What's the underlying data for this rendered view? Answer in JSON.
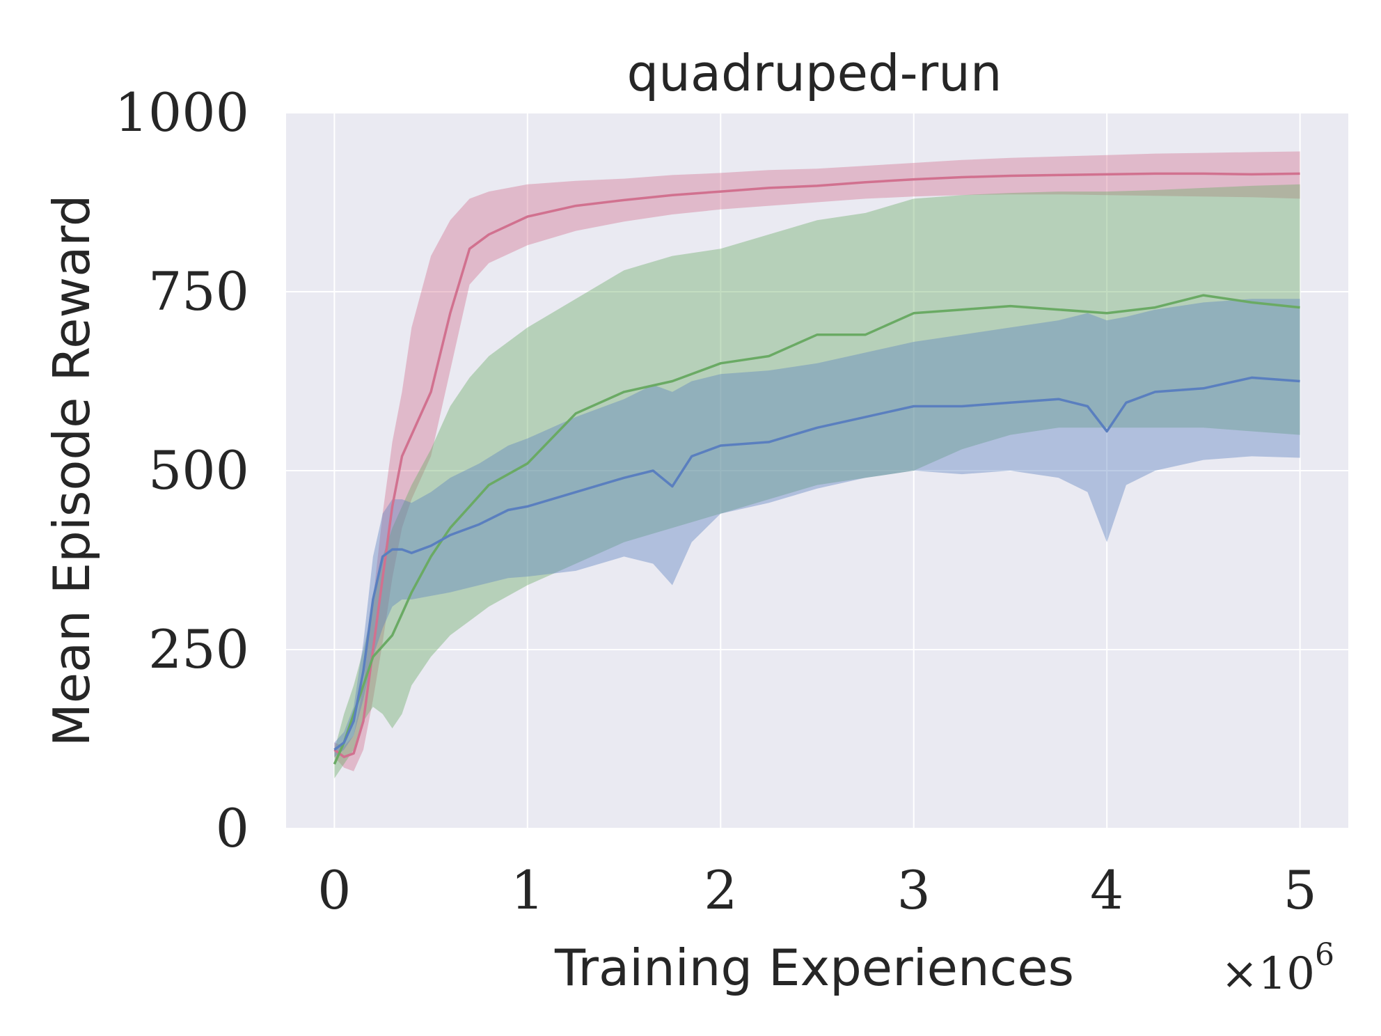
{
  "chart_data": {
    "type": "line",
    "title": "quadruped-run",
    "xlabel": "Training Experiences",
    "ylabel": "Mean Episode Reward",
    "x_offset_text": "×10",
    "x_offset_exponent": "6",
    "xlim": [
      -0.25,
      5.25
    ],
    "ylim": [
      0,
      1000
    ],
    "xticks": [
      0,
      1,
      2,
      3,
      4,
      5
    ],
    "yticks": [
      0,
      250,
      500,
      750,
      1000
    ],
    "x_tick_labels": [
      "0",
      "1",
      "2",
      "3",
      "4",
      "5"
    ],
    "y_tick_labels": [
      "0",
      "250",
      "500",
      "750",
      "1000"
    ],
    "grid": true,
    "legend": "none",
    "colors": {
      "background": "#eaeaf2",
      "grid": "#ffffff",
      "red": "#d1718f",
      "green": "#6aaa64",
      "blue": "#5a7fbf"
    },
    "series": [
      {
        "color_key": "red",
        "x": [
          0.0,
          0.05,
          0.1,
          0.15,
          0.2,
          0.25,
          0.3,
          0.35,
          0.4,
          0.5,
          0.6,
          0.7,
          0.8,
          1.0,
          1.25,
          1.5,
          1.75,
          2.0,
          2.25,
          2.5,
          2.75,
          3.0,
          3.25,
          3.5,
          3.75,
          4.0,
          4.25,
          4.5,
          4.75,
          5.0
        ],
        "y": [
          110,
          100,
          105,
          150,
          250,
          350,
          450,
          520,
          550,
          610,
          720,
          810,
          830,
          855,
          870,
          878,
          885,
          890,
          895,
          898,
          903,
          907,
          910,
          912,
          913,
          914,
          915,
          915,
          914,
          915
        ],
        "lower": [
          100,
          85,
          80,
          110,
          180,
          260,
          350,
          420,
          460,
          520,
          640,
          760,
          790,
          815,
          835,
          848,
          858,
          865,
          870,
          875,
          880,
          883,
          885,
          886,
          886,
          885,
          884,
          883,
          882,
          880
        ],
        "upper": [
          120,
          115,
          130,
          200,
          320,
          440,
          540,
          610,
          700,
          800,
          850,
          880,
          890,
          900,
          905,
          908,
          913,
          916,
          920,
          922,
          926,
          930,
          934,
          937,
          939,
          941,
          943,
          944,
          945,
          946
        ]
      },
      {
        "color_key": "green",
        "x": [
          0.0,
          0.05,
          0.1,
          0.15,
          0.2,
          0.25,
          0.3,
          0.35,
          0.4,
          0.5,
          0.6,
          0.7,
          0.8,
          1.0,
          1.25,
          1.5,
          1.75,
          2.0,
          2.25,
          2.5,
          2.75,
          3.0,
          3.25,
          3.5,
          3.75,
          4.0,
          4.25,
          4.5,
          4.75,
          5.0
        ],
        "y": [
          90,
          120,
          160,
          200,
          240,
          255,
          270,
          300,
          330,
          380,
          420,
          450,
          480,
          510,
          580,
          610,
          625,
          650,
          660,
          690,
          690,
          720,
          725,
          730,
          725,
          720,
          728,
          745,
          735,
          728
        ],
        "lower": [
          70,
          90,
          110,
          150,
          170,
          160,
          140,
          160,
          200,
          240,
          270,
          290,
          310,
          340,
          370,
          400,
          420,
          440,
          460,
          480,
          490,
          500,
          530,
          550,
          560,
          560,
          560,
          560,
          555,
          550
        ],
        "upper": [
          110,
          160,
          200,
          250,
          310,
          380,
          420,
          450,
          480,
          530,
          590,
          630,
          660,
          700,
          740,
          780,
          800,
          810,
          830,
          850,
          860,
          880,
          885,
          888,
          890,
          890,
          892,
          895,
          898,
          900
        ]
      },
      {
        "color_key": "blue",
        "x": [
          0.0,
          0.05,
          0.1,
          0.15,
          0.2,
          0.25,
          0.3,
          0.35,
          0.4,
          0.5,
          0.6,
          0.75,
          0.9,
          1.0,
          1.25,
          1.5,
          1.65,
          1.75,
          1.85,
          2.0,
          2.25,
          2.5,
          2.75,
          3.0,
          3.25,
          3.5,
          3.75,
          3.9,
          4.0,
          4.1,
          4.25,
          4.5,
          4.75,
          5.0
        ],
        "y": [
          110,
          120,
          150,
          220,
          320,
          380,
          390,
          390,
          385,
          395,
          410,
          425,
          445,
          450,
          470,
          490,
          500,
          478,
          520,
          535,
          540,
          560,
          575,
          590,
          590,
          595,
          600,
          590,
          555,
          595,
          610,
          615,
          630,
          625
        ],
        "lower": [
          100,
          110,
          130,
          180,
          240,
          280,
          310,
          320,
          320,
          325,
          330,
          340,
          350,
          352,
          360,
          380,
          370,
          340,
          400,
          440,
          455,
          475,
          490,
          500,
          495,
          500,
          490,
          470,
          400,
          480,
          500,
          515,
          520,
          518
        ],
        "upper": [
          120,
          135,
          170,
          260,
          380,
          440,
          460,
          460,
          455,
          470,
          490,
          510,
          535,
          545,
          575,
          600,
          620,
          610,
          625,
          635,
          640,
          650,
          665,
          680,
          690,
          700,
          710,
          720,
          710,
          715,
          725,
          735,
          740,
          740
        ]
      }
    ]
  }
}
